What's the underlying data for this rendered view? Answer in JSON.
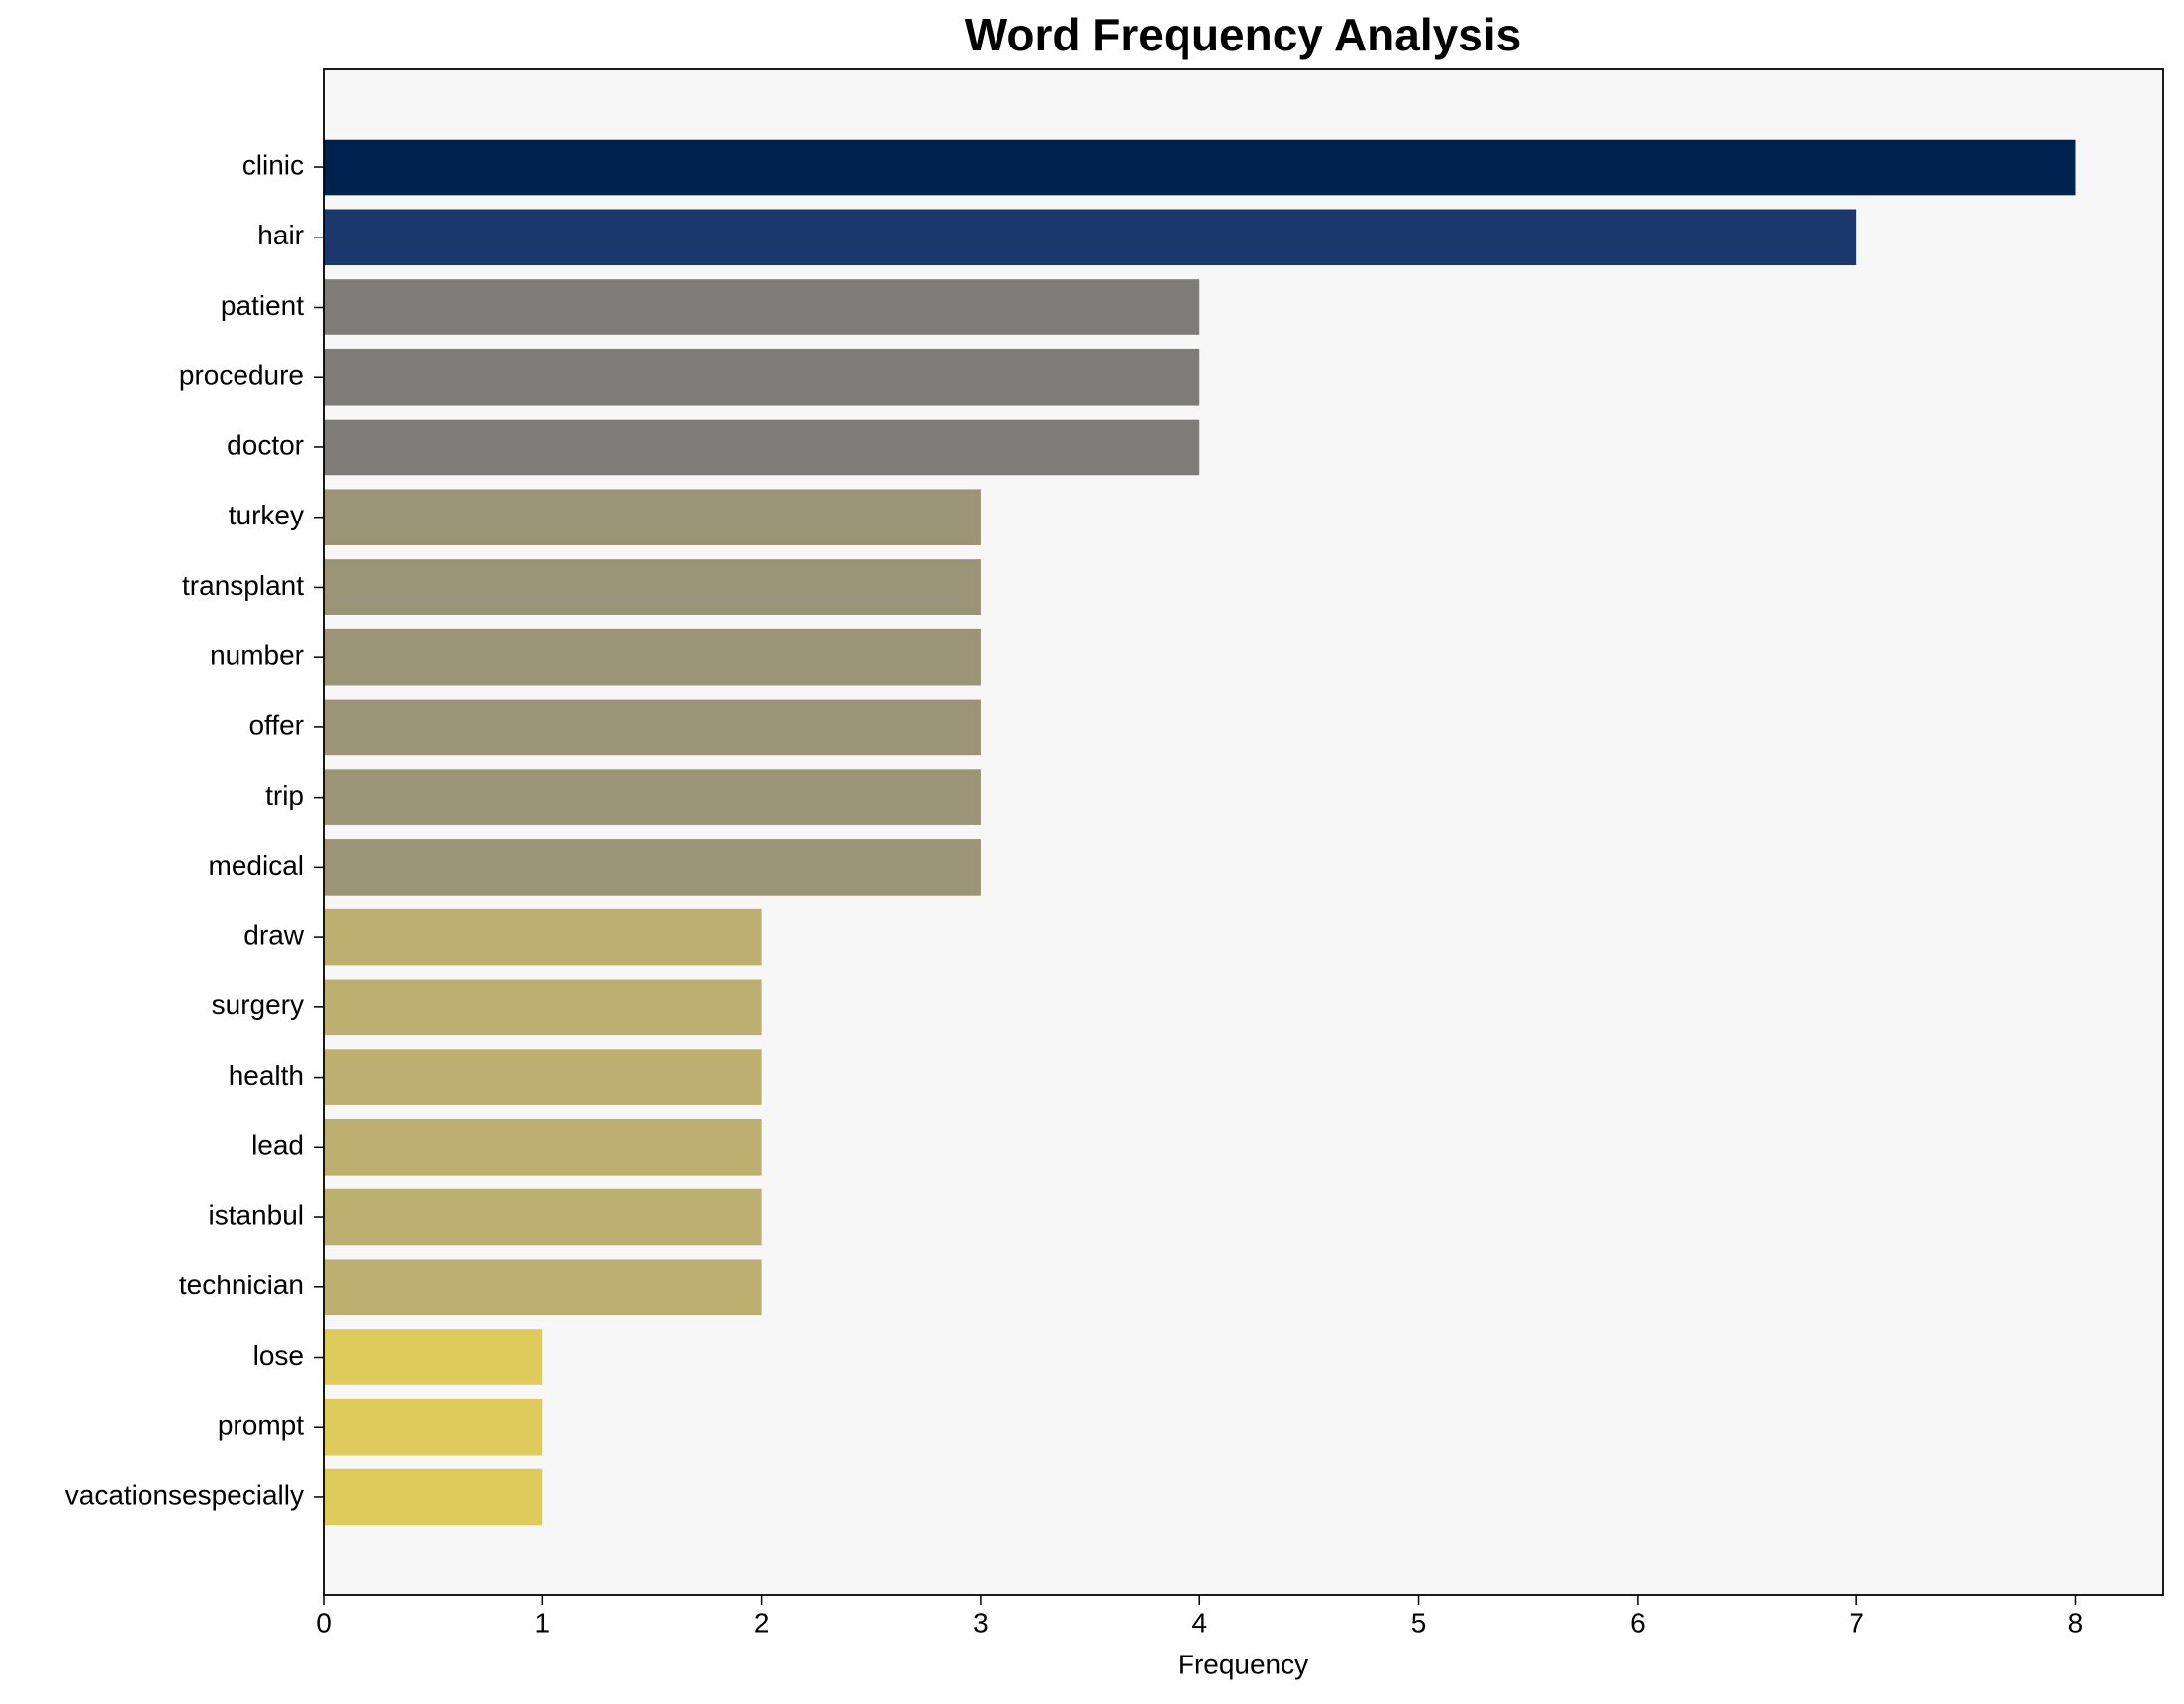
{
  "chart_data": {
    "type": "barh",
    "title": "Word Frequency Analysis",
    "x_label": "Frequency",
    "categories": [
      "clinic",
      "hair",
      "patient",
      "procedure",
      "doctor",
      "turkey",
      "transplant",
      "number",
      "offer",
      "trip",
      "medical",
      "draw",
      "surgery",
      "health",
      "lead",
      "istanbul",
      "technician",
      "lose",
      "prompt",
      "vacationsespecially"
    ],
    "values": [
      8,
      7,
      4,
      4,
      4,
      3,
      3,
      3,
      3,
      3,
      3,
      2,
      2,
      2,
      2,
      2,
      2,
      1,
      1,
      1
    ],
    "colors": [
      "#00224e",
      "#1a386b",
      "#7d7c78",
      "#7d7c78",
      "#7d7c78",
      "#9b9477",
      "#9b9477",
      "#9b9477",
      "#9b9477",
      "#9b9477",
      "#9b9477",
      "#bcaf6f",
      "#bcaf6f",
      "#bcaf6f",
      "#bcaf6f",
      "#bcaf6f",
      "#bcaf6f",
      "#dfcb5b",
      "#dfcb5b",
      "#dfcb5b"
    ],
    "xlim": [
      0,
      8.4
    ],
    "xticks": [
      0,
      1,
      2,
      3,
      4,
      5,
      6,
      7,
      8
    ],
    "grid": false
  }
}
